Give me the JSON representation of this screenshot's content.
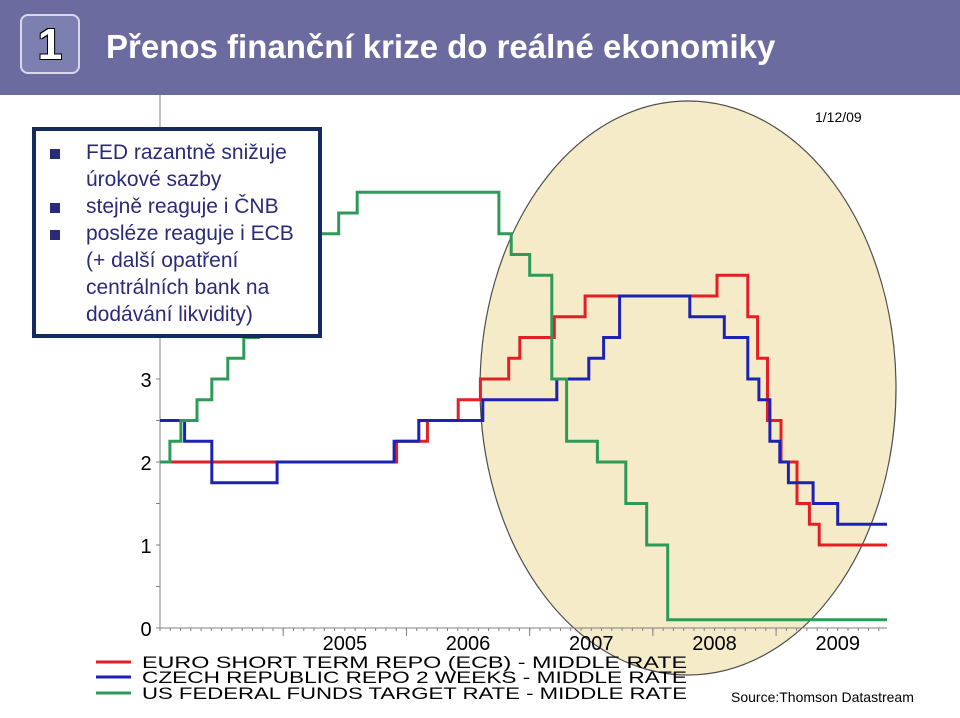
{
  "header": {
    "slide_number": "1",
    "title": "Přenos finanční krize do reálné ekonomiky"
  },
  "callout": {
    "items": [
      "FED razantně snižuje úrokové sazby",
      "stejně reaguje i ČNB",
      "posléze reaguje i ECB (+ další opatření centrálních bank na dodávání likvidity)"
    ]
  },
  "date_label": "1/12/09",
  "source": "Source:Thomson Datastream",
  "colors": {
    "header_bg": "#6b6b9f",
    "highlight": "#f5ebc9",
    "ecb": "#e31e24",
    "cnb": "#1c22b3",
    "fed": "#2e9a57"
  },
  "chart_data": {
    "type": "line",
    "x_range": [
      2004.0,
      2009.9
    ],
    "ylim": [
      0,
      7
    ],
    "y_ticks": [
      0,
      1,
      2,
      3
    ],
    "x_ticks": [
      "2005",
      "2006",
      "2007",
      "2008",
      "2009"
    ],
    "highlight": "ellipse around 2007–2009",
    "series": [
      {
        "name": "EURO SHORT TERM REPO (ECB) - MIDDLE RATE",
        "color": "#e31e24",
        "points": [
          [
            2004.0,
            2.0
          ],
          [
            2005.92,
            2.25
          ],
          [
            2006.17,
            2.5
          ],
          [
            2006.42,
            2.75
          ],
          [
            2006.6,
            3.0
          ],
          [
            2006.83,
            3.25
          ],
          [
            2006.92,
            3.5
          ],
          [
            2007.2,
            3.75
          ],
          [
            2007.45,
            4.0
          ],
          [
            2008.52,
            4.25
          ],
          [
            2008.77,
            3.75
          ],
          [
            2008.85,
            3.25
          ],
          [
            2008.93,
            2.5
          ],
          [
            2009.04,
            2.0
          ],
          [
            2009.17,
            1.5
          ],
          [
            2009.27,
            1.25
          ],
          [
            2009.35,
            1.0
          ],
          [
            2009.9,
            1.0
          ]
        ]
      },
      {
        "name": "CZECH REPUBLIC REPO 2 WEEKS - MIDDLE RATE",
        "color": "#1c22b3",
        "points": [
          [
            2004.0,
            2.5
          ],
          [
            2004.2,
            2.25
          ],
          [
            2004.42,
            1.75
          ],
          [
            2004.95,
            2.0
          ],
          [
            2005.9,
            2.25
          ],
          [
            2006.1,
            2.5
          ],
          [
            2006.62,
            2.75
          ],
          [
            2007.22,
            3.0
          ],
          [
            2007.48,
            3.25
          ],
          [
            2007.6,
            3.5
          ],
          [
            2007.73,
            4.0
          ],
          [
            2008.3,
            3.75
          ],
          [
            2008.58,
            3.5
          ],
          [
            2008.77,
            3.0
          ],
          [
            2008.86,
            2.75
          ],
          [
            2008.95,
            2.25
          ],
          [
            2009.03,
            2.0
          ],
          [
            2009.1,
            1.75
          ],
          [
            2009.3,
            1.5
          ],
          [
            2009.5,
            1.25
          ],
          [
            2009.9,
            1.25
          ]
        ]
      },
      {
        "name": "US FEDERAL FUNDS TARGET RATE - MIDDLE RATE",
        "color": "#2e9a57",
        "points": [
          [
            2004.0,
            2.0
          ],
          [
            2004.08,
            2.25
          ],
          [
            2004.17,
            2.5
          ],
          [
            2004.3,
            2.75
          ],
          [
            2004.42,
            3.0
          ],
          [
            2004.55,
            3.25
          ],
          [
            2004.68,
            3.5
          ],
          [
            2004.8,
            3.75
          ],
          [
            2004.93,
            4.0
          ],
          [
            2005.05,
            4.25
          ],
          [
            2005.17,
            4.5
          ],
          [
            2005.3,
            4.75
          ],
          [
            2005.45,
            5.0
          ],
          [
            2005.6,
            5.25
          ],
          [
            2006.75,
            4.75
          ],
          [
            2006.85,
            4.5
          ],
          [
            2007.0,
            4.25
          ],
          [
            2007.18,
            3.0
          ],
          [
            2007.3,
            2.25
          ],
          [
            2007.55,
            2.0
          ],
          [
            2007.78,
            1.5
          ],
          [
            2007.95,
            1.0
          ],
          [
            2008.12,
            0.1
          ],
          [
            2009.9,
            0.1
          ]
        ]
      }
    ]
  }
}
